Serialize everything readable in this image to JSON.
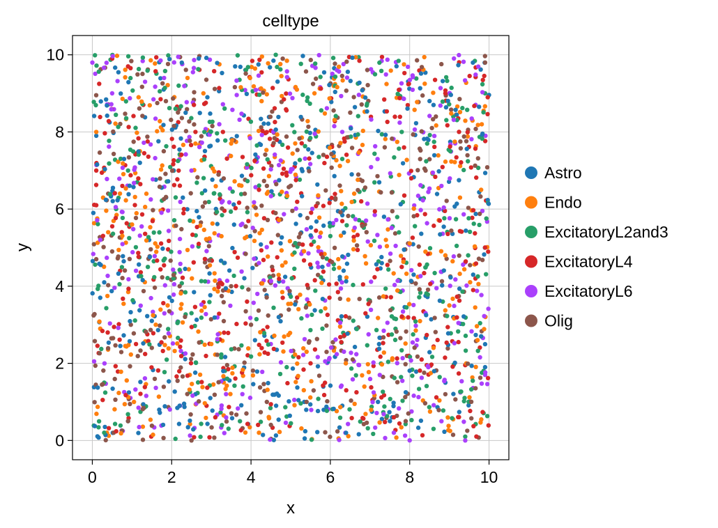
{
  "chart_data": {
    "type": "scatter",
    "title": "celltype",
    "xlabel": "x",
    "ylabel": "y",
    "xlim": [
      -0.5,
      10.5
    ],
    "ylim": [
      -0.5,
      10.5
    ],
    "xticks": [
      0,
      2,
      4,
      6,
      8,
      10
    ],
    "yticks": [
      0,
      2,
      4,
      6,
      8,
      10
    ],
    "xtick_labels": [
      "0",
      "2",
      "4",
      "6",
      "8",
      "10"
    ],
    "ytick_labels": [
      "0",
      "2",
      "4",
      "6",
      "8",
      "10"
    ],
    "grid": true,
    "legend_position": "right, outside plot",
    "n_points_per_series": 420,
    "series": [
      {
        "name": "Astro",
        "color": "#1f77b4",
        "x": [
          0.1,
          1.8,
          2.9,
          3.6,
          8.5,
          8.6,
          9.9,
          0.3,
          0.8,
          1.2,
          4.7,
          5.2,
          7.2,
          8.9,
          9.6,
          2.2,
          0.9,
          2.6,
          4.1,
          5.8,
          6.3,
          7.5,
          8.1,
          9.1,
          0.2,
          1.5,
          3.3,
          9.8
        ],
        "y": [
          7.9,
          9.1,
          8.9,
          9.7,
          8.8,
          8.7,
          1.9,
          4.1,
          7.3,
          7.2,
          3.2,
          5.1,
          1.0,
          1.5,
          4.3,
          0.9,
          0.5,
          1.2,
          2.6,
          4.5,
          0.9,
          0.5,
          4.3,
          3.2,
          3.7,
          3.1,
          1.8,
          2.7
        ]
      },
      {
        "name": "Endo",
        "color": "#ff7f0e",
        "x": [
          0.1,
          0.2,
          1.0,
          2.4,
          3.0,
          4.2,
          5.4,
          6.6,
          7.4,
          8.6,
          9.8,
          2.8,
          1.6,
          0.4,
          5.6,
          6.2,
          8.9,
          9.0,
          7.8,
          4.4,
          3.5,
          1.2
        ],
        "y": [
          8.0,
          2.9,
          5.6,
          9.4,
          2.5,
          0.2,
          2.3,
          6.4,
          5.2,
          2.4,
          6.5,
          9.0,
          3.0,
          5.4,
          9.0,
          4.7,
          4.8,
          3.5,
          3.2,
          6.4,
          7.7,
          7.5
        ]
      },
      {
        "name": "ExcitatoryL2and3",
        "color": "#279e68",
        "x": [
          0.3,
          0.6,
          0.9,
          2.1,
          3.4,
          5.4,
          6.3,
          9.4,
          9.9,
          0.3,
          5.8,
          6.6,
          7.8,
          9.1,
          4.9,
          2.5,
          1.4,
          8.6,
          6.0,
          3.8
        ],
        "y": [
          0.2,
          6.0,
          7.0,
          6.3,
          1.6,
          3.5,
          7.3,
          0.1,
          9.0,
          1.5,
          2.9,
          6.2,
          8.0,
          8.4,
          1.9,
          3.3,
          4.5,
          0.3,
          5.3,
          1.4
        ]
      },
      {
        "name": "ExcitatoryL4",
        "color": "#d62728",
        "x": [
          0.1,
          0.1,
          0.9,
          4.2,
          5.5,
          7.8,
          8.9,
          0.7,
          3.1,
          4.8,
          6.4,
          8.3,
          9.6,
          1.1,
          2.6,
          5.1,
          6.8,
          7.6,
          0.5,
          3.9
        ],
        "y": [
          7.0,
          6.1,
          9.7,
          6.5,
          2.0,
          4.5,
          9.0,
          4.4,
          0.6,
          3.7,
          1.3,
          2.1,
          3.9,
          2.5,
          8.0,
          7.1,
          5.6,
          0.6,
          9.9,
          3.6
        ]
      },
      {
        "name": "ExcitatoryL6",
        "color": "#aa40fc",
        "x": [
          0.0,
          0.5,
          2.5,
          4.2,
          5.3,
          5.7,
          6.9,
          8.4,
          9.9,
          1.1,
          3.2,
          7.6,
          9.4,
          0.2,
          6.3,
          8.8,
          4.5,
          2.0
        ],
        "y": [
          9.8,
          9.0,
          7.0,
          4.6,
          4.9,
          4.5,
          5.7,
          3.3,
          1.7,
          4.4,
          8.2,
          0.2,
          0.0,
          5.2,
          8.0,
          6.6,
          2.5,
          3.3
        ]
      },
      {
        "name": "Olig",
        "color": "#8c564b",
        "x": [
          0.1,
          0.5,
          0.9,
          1.8,
          2.2,
          2.5,
          4.0,
          4.8,
          6.5,
          7.9,
          8.9,
          9.9,
          0.4,
          2.9,
          3.5,
          5.4,
          7.0,
          8.4,
          1.5,
          4.4
        ],
        "y": [
          4.7,
          4.9,
          0.5,
          7.5,
          4.0,
          0.0,
          3.0,
          9.9,
          8.5,
          0.5,
          1.2,
          9.8,
          6.4,
          4.5,
          4.0,
          1.0,
          3.6,
          7.0,
          2.4,
          6.6
        ]
      }
    ]
  }
}
